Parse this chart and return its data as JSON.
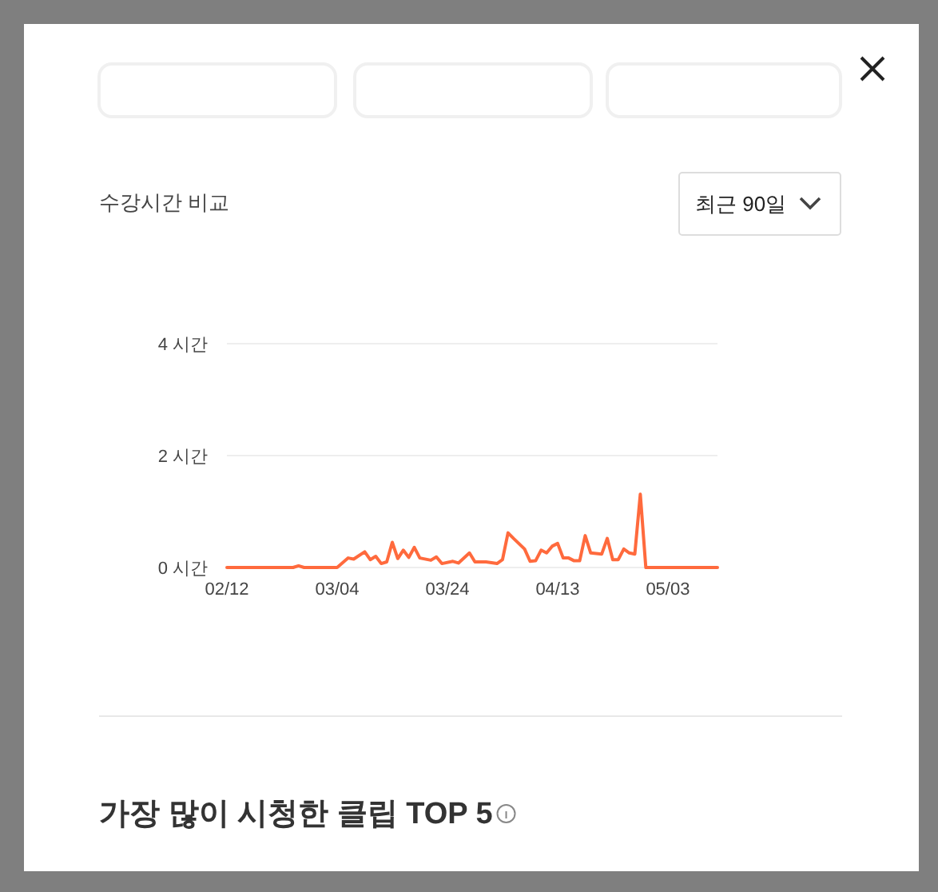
{
  "chart_data": {
    "type": "line",
    "title": "수강시간 비교",
    "annotations": [
      "최근 90일",
      "가장 많이 시청한 클립 TOP 5"
    ],
    "x": [
      "--02-12",
      "--02-24",
      "--02-25",
      "--02-26",
      "--03-04",
      "--03-06",
      "--03-07",
      "--03-09",
      "--03-10",
      "--03-11",
      "--03-12",
      "--03-13",
      "--03-14",
      "--03-15",
      "--03-16",
      "--03-17",
      "--03-18",
      "--03-19",
      "--03-21",
      "--03-22",
      "--03-23",
      "--03-25",
      "--03-26",
      "--03-28",
      "--03-29",
      "--03-31",
      "--04-02",
      "--04-03",
      "--04-04",
      "--04-05",
      "--04-07",
      "--04-08",
      "--04-09",
      "--04-10",
      "--04-11",
      "--04-12",
      "--04-13",
      "--04-14",
      "--04-15",
      "--04-16",
      "--04-17",
      "--04-18",
      "--04-19",
      "--04-21",
      "--04-22",
      "--04-23",
      "--04-24",
      "--04-25",
      "--04-26",
      "--04-27",
      "--04-28",
      "--04-29",
      "--05-12"
    ],
    "values": [
      0,
      0,
      0.03,
      0,
      0,
      0.17,
      0.15,
      0.28,
      0.14,
      0.2,
      0.07,
      0.1,
      0.45,
      0.16,
      0.31,
      0.18,
      0.36,
      0.17,
      0.13,
      0.19,
      0.07,
      0.11,
      0.08,
      0.26,
      0.1,
      0.1,
      0.07,
      0.14,
      0.62,
      0.52,
      0.33,
      0.11,
      0.12,
      0.31,
      0.26,
      0.38,
      0.43,
      0.17,
      0.17,
      0.12,
      0.12,
      0.57,
      0.26,
      0.24,
      0.52,
      0.14,
      0.14,
      0.33,
      0.26,
      0.24,
      1.31,
      0,
      0
    ],
    "color": "#ff6a3d",
    "xlim": [
      "--02-12",
      "--05-12"
    ],
    "xticks": [
      {
        "value": "--02-12",
        "label": "02/12"
      },
      {
        "value": "--03-04",
        "label": "03/04"
      },
      {
        "value": "--03-24",
        "label": "03/24"
      },
      {
        "value": "--04-13",
        "label": "04/13"
      },
      {
        "value": "--05-03",
        "label": "05/03"
      }
    ],
    "ylim": [
      0,
      4
    ],
    "yticks": [
      {
        "value": 0,
        "label": "0 시간"
      },
      {
        "value": 2,
        "label": "2 시간"
      },
      {
        "value": 4,
        "label": "4 시간"
      }
    ],
    "grid": "y",
    "marker": "none",
    "line_style": "solid"
  }
}
